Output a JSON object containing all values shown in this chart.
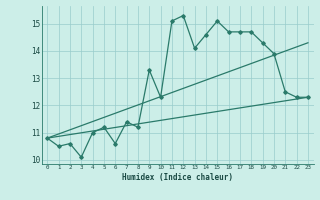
{
  "xlabel": "Humidex (Indice chaleur)",
  "ylabel": "",
  "background_color": "#cceee8",
  "line_color": "#2a7a6a",
  "grid_color": "#99cccc",
  "xlim": [
    -0.5,
    23.5
  ],
  "ylim": [
    9.85,
    15.65
  ],
  "yticks": [
    10,
    11,
    12,
    13,
    14,
    15
  ],
  "xticks": [
    0,
    1,
    2,
    3,
    4,
    5,
    6,
    7,
    8,
    9,
    10,
    11,
    12,
    13,
    14,
    15,
    16,
    17,
    18,
    19,
    20,
    21,
    22,
    23
  ],
  "series1": {
    "x": [
      0,
      1,
      2,
      3,
      4,
      5,
      6,
      7,
      8,
      9,
      10,
      11,
      12,
      13,
      14,
      15,
      16,
      17,
      18,
      19,
      20,
      21,
      22,
      23
    ],
    "y": [
      10.8,
      10.5,
      10.6,
      10.1,
      11.0,
      11.2,
      10.6,
      11.4,
      11.2,
      13.3,
      12.3,
      15.1,
      15.3,
      14.1,
      14.6,
      15.1,
      14.7,
      14.7,
      14.7,
      14.3,
      13.9,
      12.5,
      12.3,
      12.3
    ]
  },
  "series2": {
    "x": [
      0,
      23
    ],
    "y": [
      10.8,
      12.3
    ]
  },
  "series3": {
    "x": [
      0,
      23
    ],
    "y": [
      10.8,
      14.3
    ]
  }
}
